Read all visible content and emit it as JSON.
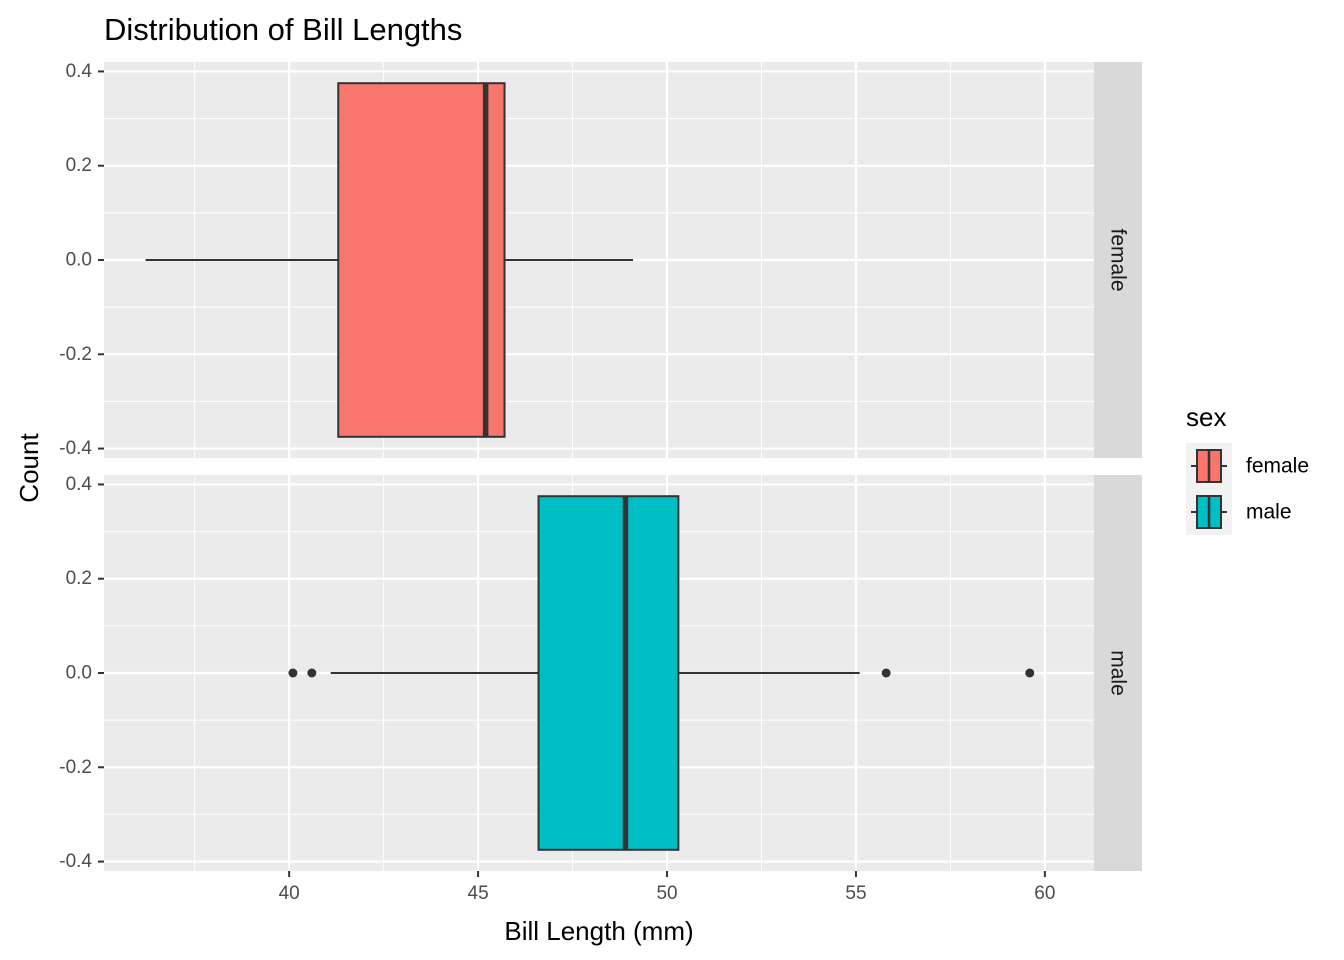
{
  "chart_data": {
    "type": "boxplot",
    "title": "Distribution of Bill Lengths",
    "xlabel": "Bill Length (mm)",
    "ylabel": "Count",
    "xlim": [
      35.1,
      61.3
    ],
    "ylim": [
      -0.42,
      0.42
    ],
    "x_ticks": [
      40,
      45,
      50,
      55,
      60
    ],
    "y_ticks": [
      0.4,
      0.2,
      0.0,
      -0.2,
      -0.4
    ],
    "x_tick_labels": [
      "40",
      "45",
      "50",
      "55",
      "60"
    ],
    "y_tick_labels": [
      "0.4",
      "0.2",
      "0.0",
      "-0.2",
      "-0.4"
    ],
    "box_y_range": [
      -0.375,
      0.375
    ],
    "panels": [
      {
        "strip_label": "female",
        "series": "female",
        "fill": "#F8766D",
        "whisker_low": 36.2,
        "q1": 41.3,
        "median": 45.2,
        "q3": 45.7,
        "whisker_high": 49.1,
        "outliers": []
      },
      {
        "strip_label": "male",
        "series": "male",
        "fill": "#00BFC4",
        "whisker_low": 41.1,
        "q1": 46.6,
        "median": 48.9,
        "q3": 50.3,
        "whisker_high": 55.1,
        "outliers": [
          40.1,
          40.6,
          55.8,
          59.6
        ]
      }
    ],
    "legend": {
      "title": "sex",
      "position": "right",
      "items": [
        {
          "label": "female",
          "color": "#F8766D"
        },
        {
          "label": "male",
          "color": "#00BFC4"
        }
      ]
    },
    "grid": true,
    "panel_background": "#EBEBEB",
    "strip_background": "#D9D9D9",
    "outline_color": "#333333"
  }
}
